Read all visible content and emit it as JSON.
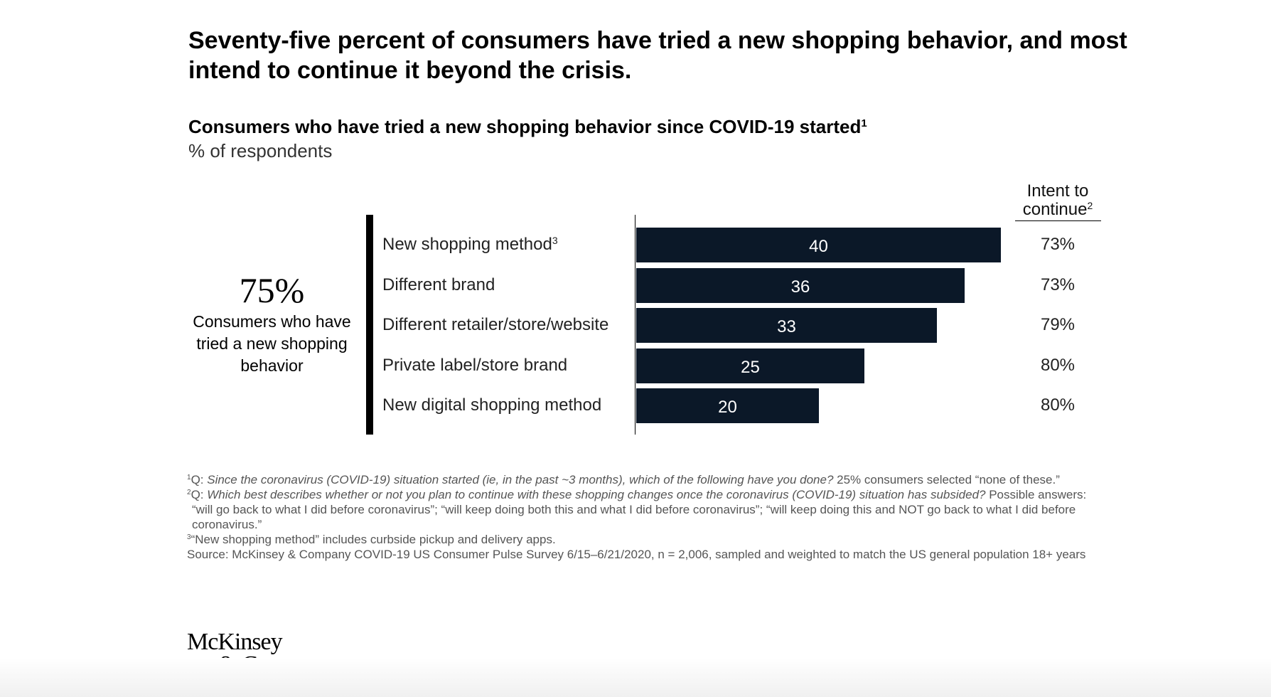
{
  "headline": "Seventy-five percent of consumers have tried a new shopping behavior, and most intend to continue it beyond the crisis.",
  "chart_data": {
    "type": "bar",
    "orientation": "horizontal",
    "title": "Consumers who have tried a new shopping behavior since COVID-19 started",
    "title_sup": "1",
    "units": "% of respondents",
    "categories": [
      "New shopping method",
      "Different brand",
      "Different retailer/store/website",
      "Private label/store brand",
      "New digital shopping method"
    ],
    "category_sups": [
      "3",
      "",
      "",
      "",
      ""
    ],
    "values": [
      40,
      36,
      33,
      25,
      20
    ],
    "xlim": [
      0,
      40
    ],
    "bar_color": "#0b1828",
    "grid": false,
    "intent": {
      "header_line1": "Intent to",
      "header_line2": "continue",
      "header_sup": "2",
      "values": [
        "73%",
        "73%",
        "79%",
        "80%",
        "80%"
      ]
    },
    "summary": {
      "value": "75%",
      "caption": "Consumers who have tried a new shopping behavior"
    }
  },
  "footnotes": {
    "fn1": {
      "sup": "1",
      "prefix": "Q: ",
      "question": "Since the coronavirus (COVID-19) situation started (ie, in the past ~3 months), which of the following have you done?",
      "rest": " 25% consumers selected “none of these.”"
    },
    "fn2": {
      "sup": "2",
      "prefix": "Q: ",
      "question": "Which best describes whether or not you plan to continue with these shopping changes once the coronavirus (COVID-19) situation has subsided?",
      "rest": " Possible answers: “will go back to what I did before coronavirus”; “will keep doing both this and what I did before coronavirus”; “will keep doing this and NOT go back to what I did before coronavirus.”"
    },
    "fn3": {
      "sup": "3",
      "text": "“New shopping method” includes curbside pickup and delivery apps."
    },
    "source": "Source: McKinsey & Company COVID-19 US Consumer Pulse Survey 6/15–6/21/2020, n = 2,006, sampled and weighted to match the US general population 18+ years"
  },
  "logo": {
    "line1": "McKinsey",
    "line2": "& Company"
  }
}
